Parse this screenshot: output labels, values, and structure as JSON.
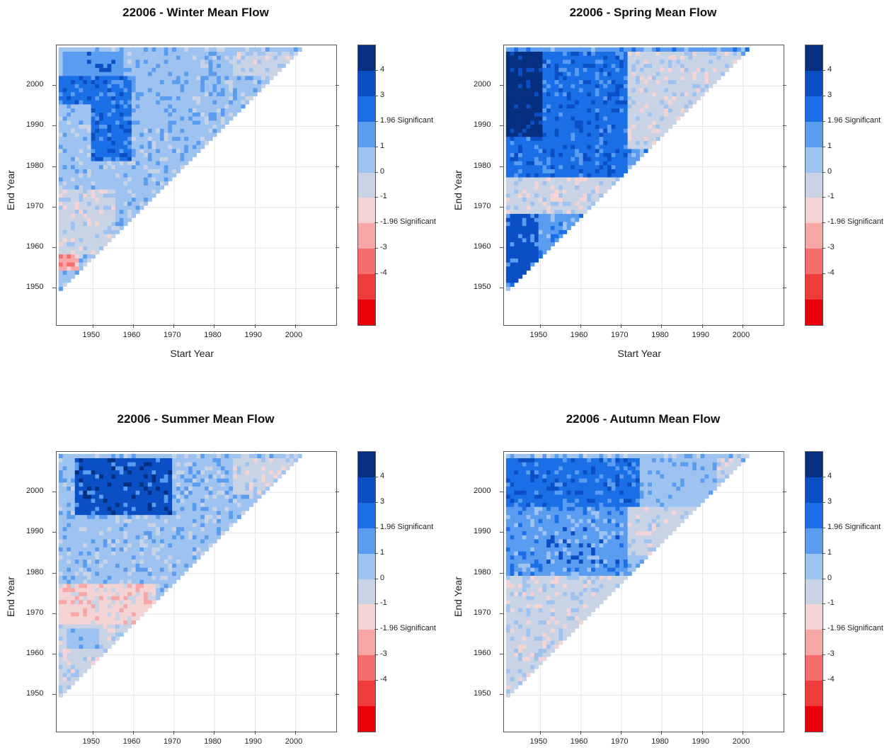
{
  "colorscale": {
    "colors": [
      "#e8000b",
      "#ee3b3b",
      "#f56d6d",
      "#f8a6a6",
      "#f3d3d3",
      "#c8d4e6",
      "#9ec3f0",
      "#5a9cf0",
      "#1b6fe6",
      "#0b4fc4",
      "#062f80"
    ],
    "labels": [
      "-4",
      "-3",
      "-1.96 Significant",
      "-1",
      "0",
      "1",
      "1.96 Significant",
      "3",
      "4"
    ]
  },
  "chart_data": [
    {
      "type": "heatmap",
      "title": "22006 - Winter Mean Flow",
      "xlabel": "Start Year",
      "ylabel": "End Year",
      "xticks": [
        "1950",
        "1960",
        "1970",
        "1980",
        "1990",
        "2000"
      ],
      "yticks": [
        "1950",
        "1960",
        "1970",
        "1980",
        "1990",
        "2000"
      ],
      "xlim": [
        1941,
        2010
      ],
      "ylim": [
        1941,
        2010
      ],
      "start_year": 1942,
      "end_year": 2009,
      "zones": [
        {
          "x": [
            1942,
            1947
          ],
          "y": [
            1955,
            1959
          ],
          "z": -2.3
        },
        {
          "x": [
            1942,
            1956
          ],
          "y": [
            1959,
            1975
          ],
          "z": -0.8
        },
        {
          "x": [
            1942,
            1950
          ],
          "y": [
            1975,
            1982
          ],
          "z": -0.3
        },
        {
          "x": [
            1942,
            1965
          ],
          "y": [
            1975,
            1990
          ],
          "z": 0.6
        },
        {
          "x": [
            1950,
            1960
          ],
          "y": [
            1982,
            2003
          ],
          "z": 2.2
        },
        {
          "x": [
            1942,
            1950
          ],
          "y": [
            1996,
            2003
          ],
          "z": 2.4
        },
        {
          "x": [
            1943,
            1958
          ],
          "y": [
            2003,
            2009
          ],
          "z": 1.9
        },
        {
          "x": [
            1960,
            1975
          ],
          "y": [
            1990,
            2009
          ],
          "z": 0.9
        },
        {
          "x": [
            1975,
            1990
          ],
          "y": [
            1990,
            2009
          ],
          "z": 0.1
        },
        {
          "x": [
            1985,
            2000
          ],
          "y": [
            2003,
            2009
          ],
          "z": -0.6
        }
      ],
      "default_z": 0.5
    },
    {
      "type": "heatmap",
      "title": "22006 - Spring Mean Flow",
      "xlabel": "Start Year",
      "ylabel": "End Year",
      "xticks": [
        "1950",
        "1960",
        "1970",
        "1980",
        "1990",
        "2000"
      ],
      "yticks": [
        "1950",
        "1960",
        "1970",
        "1980",
        "1990",
        "2000"
      ],
      "xlim": [
        1941,
        2010
      ],
      "ylim": [
        1941,
        2010
      ],
      "start_year": 1942,
      "end_year": 2009,
      "zones": [
        {
          "x": [
            1942,
            1950
          ],
          "y": [
            1952,
            1969
          ],
          "z": 2.5
        },
        {
          "x": [
            1942,
            1972
          ],
          "y": [
            1969,
            1978
          ],
          "z": -0.4
        },
        {
          "x": [
            1942,
            1972
          ],
          "y": [
            1978,
            1995
          ],
          "z": 2.3
        },
        {
          "x": [
            1942,
            1951
          ],
          "y": [
            1988,
            2009
          ],
          "z": 3.6
        },
        {
          "x": [
            1951,
            1972
          ],
          "y": [
            1995,
            2009
          ],
          "z": 2.4
        },
        {
          "x": [
            1972,
            2000
          ],
          "y": [
            1985,
            2009
          ],
          "z": -0.6
        }
      ],
      "default_z": 1.2
    },
    {
      "type": "heatmap",
      "title": "22006 - Summer Mean Flow",
      "xlabel": "",
      "ylabel": "End Year",
      "xticks": [
        "1950",
        "1960",
        "1970",
        "1980",
        "1990",
        "2000"
      ],
      "yticks": [
        "1950",
        "1960",
        "1970",
        "1980",
        "1990",
        "2000"
      ],
      "xlim": [
        1941,
        2010
      ],
      "ylim": [
        1941,
        2010
      ],
      "start_year": 1942,
      "end_year": 2009,
      "zones": [
        {
          "x": [
            1942,
            1960
          ],
          "y": [
            1950,
            1968
          ],
          "z": -0.6
        },
        {
          "x": [
            1944,
            1952
          ],
          "y": [
            1962,
            1967
          ],
          "z": 0.8
        },
        {
          "x": [
            1942,
            1966
          ],
          "y": [
            1968,
            1978
          ],
          "z": -1.3
        },
        {
          "x": [
            1942,
            1968
          ],
          "y": [
            1978,
            1995
          ],
          "z": 0.7
        },
        {
          "x": [
            1946,
            1970
          ],
          "y": [
            1995,
            2009
          ],
          "z": 2.6
        },
        {
          "x": [
            1970,
            1985
          ],
          "y": [
            1985,
            2009
          ],
          "z": 0.6
        },
        {
          "x": [
            1985,
            2000
          ],
          "y": [
            2000,
            2009
          ],
          "z": -0.5
        }
      ],
      "default_z": 0.3
    },
    {
      "type": "heatmap",
      "title": "22006 - Autumn Mean Flow",
      "xlabel": "",
      "ylabel": "End Year",
      "xticks": [
        "1950",
        "1960",
        "1970",
        "1980",
        "1990",
        "2000"
      ],
      "yticks": [
        "1950",
        "1960",
        "1970",
        "1980",
        "1990",
        "2000"
      ],
      "xlim": [
        1941,
        2010
      ],
      "ylim": [
        1941,
        2010
      ],
      "start_year": 1942,
      "end_year": 2009,
      "zones": [
        {
          "x": [
            1942,
            1972
          ],
          "y": [
            1950,
            1980
          ],
          "z": -0.7
        },
        {
          "x": [
            1942,
            1972
          ],
          "y": [
            1980,
            1997
          ],
          "z": 1.2
        },
        {
          "x": [
            1950,
            1970
          ],
          "y": [
            1983,
            1992
          ],
          "z": 1.6
        },
        {
          "x": [
            1942,
            1975
          ],
          "y": [
            1997,
            2009
          ],
          "z": 2.3
        },
        {
          "x": [
            1972,
            2000
          ],
          "y": [
            1985,
            1997
          ],
          "z": -0.4
        },
        {
          "x": [
            1975,
            1995
          ],
          "y": [
            1997,
            2009
          ],
          "z": 0.9
        },
        {
          "x": [
            1994,
            2000
          ],
          "y": [
            2002,
            2009
          ],
          "z": -0.6
        }
      ],
      "default_z": 0.2
    }
  ]
}
